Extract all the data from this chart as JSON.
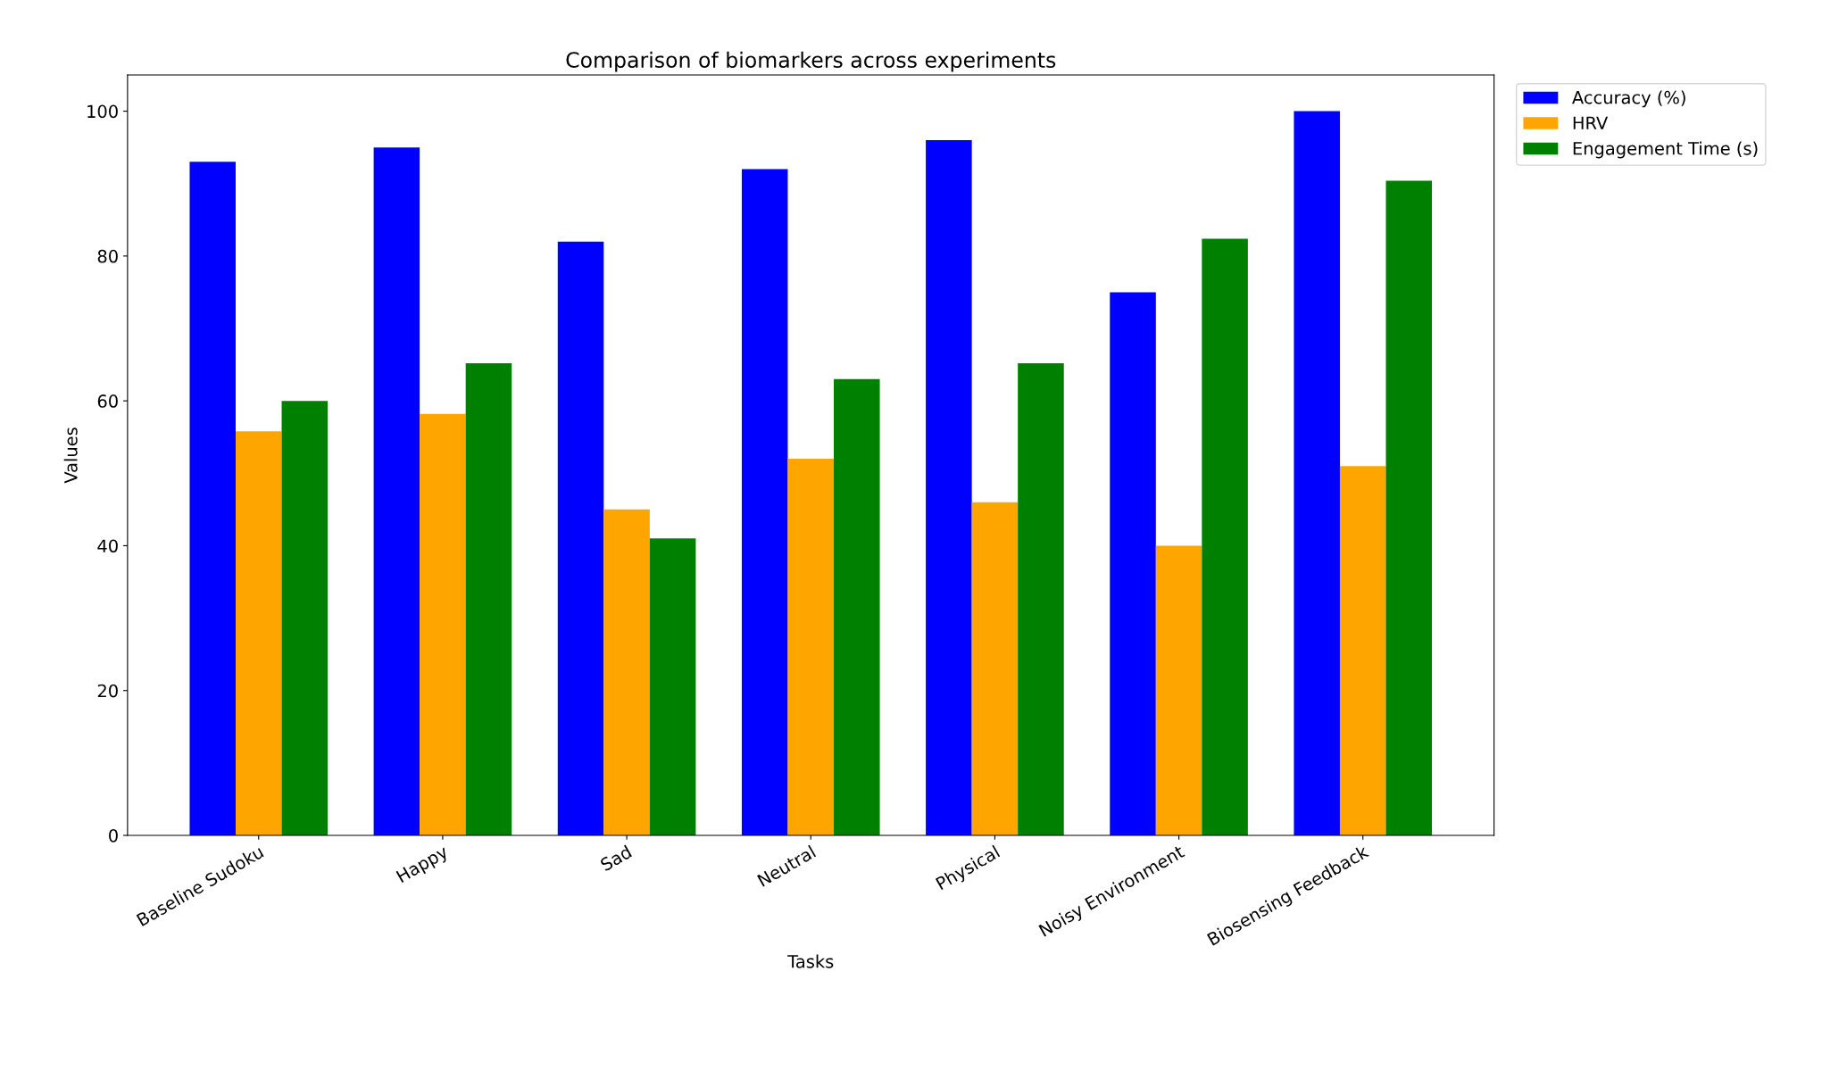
{
  "chart_data": {
    "type": "bar",
    "title": "Comparison of biomarkers across experiments",
    "xlabel": "Tasks",
    "ylabel": "Values",
    "categories": [
      "Baseline Sudoku",
      "Happy",
      "Sad",
      "Neutral",
      "Physical",
      "Noisy Environment",
      "Biosensing Feedback"
    ],
    "series": [
      {
        "name": "Accuracy (%)",
        "color": "#0000ff",
        "values": [
          93,
          95,
          82,
          92,
          96,
          75,
          100
        ]
      },
      {
        "name": "HRV",
        "color": "#ffa500",
        "values": [
          55.8,
          58.2,
          45,
          52,
          46,
          40,
          51
        ]
      },
      {
        "name": "Engagement Time (s)",
        "color": "#008000",
        "values": [
          60,
          65.2,
          41,
          63,
          65.2,
          82.4,
          90.4
        ]
      }
    ],
    "ylim": [
      0,
      105
    ],
    "yticks": [
      0,
      20,
      40,
      60,
      80,
      100
    ],
    "grid": false,
    "legend": "top right"
  }
}
